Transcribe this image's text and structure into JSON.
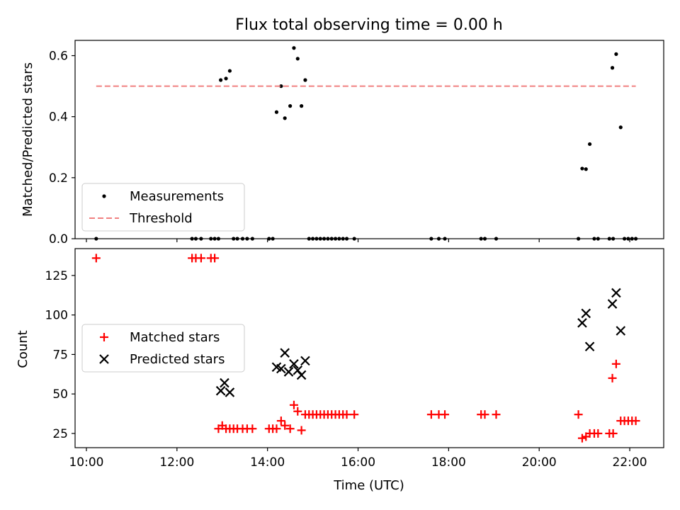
{
  "title": "Flux total observing time = 0.00 h",
  "chart_data": [
    {
      "type": "scatter",
      "panel": "top",
      "ylabel": "Matched/Predicted stars",
      "xlim": [
        "09:45",
        "22:45"
      ],
      "ylim": [
        0,
        0.65
      ],
      "yticks": [
        0.0,
        0.2,
        0.4,
        0.6
      ],
      "ytick_labels": [
        "0.0",
        "0.2",
        "0.4",
        "0.6"
      ],
      "xtick_labels_visible": false,
      "grid": false,
      "legend_position": "lower-left",
      "series": [
        {
          "name": "Measurements",
          "kind": "scatter",
          "marker": "dot",
          "color": "#000000",
          "points": [
            [
              "10:13",
              0
            ],
            [
              "12:20",
              0
            ],
            [
              "12:25",
              0
            ],
            [
              "12:32",
              0
            ],
            [
              "12:45",
              0
            ],
            [
              "12:50",
              0
            ],
            [
              "12:55",
              0
            ],
            [
              "12:58",
              0.52
            ],
            [
              "13:05",
              0.525
            ],
            [
              "13:10",
              0.55
            ],
            [
              "13:15",
              0
            ],
            [
              "13:20",
              0
            ],
            [
              "13:27",
              0
            ],
            [
              "13:33",
              0
            ],
            [
              "13:40",
              0
            ],
            [
              "14:02",
              0
            ],
            [
              "14:07",
              0
            ],
            [
              "14:12",
              0.415
            ],
            [
              "14:18",
              0.5
            ],
            [
              "14:23",
              0.395
            ],
            [
              "14:30",
              0.435
            ],
            [
              "14:35",
              0.625
            ],
            [
              "14:40",
              0.59
            ],
            [
              "14:45",
              0.435
            ],
            [
              "14:50",
              0.52
            ],
            [
              "14:55",
              0
            ],
            [
              "15:00",
              0
            ],
            [
              "15:05",
              0
            ],
            [
              "15:10",
              0
            ],
            [
              "15:15",
              0
            ],
            [
              "15:20",
              0
            ],
            [
              "15:25",
              0
            ],
            [
              "15:30",
              0
            ],
            [
              "15:35",
              0
            ],
            [
              "15:40",
              0
            ],
            [
              "15:45",
              0
            ],
            [
              "15:55",
              0
            ],
            [
              "17:37",
              0
            ],
            [
              "17:47",
              0
            ],
            [
              "17:55",
              0
            ],
            [
              "18:43",
              0
            ],
            [
              "18:48",
              0
            ],
            [
              "19:03",
              0
            ],
            [
              "20:52",
              0
            ],
            [
              "20:57",
              0.23
            ],
            [
              "21:02",
              0.228
            ],
            [
              "21:07",
              0.31
            ],
            [
              "21:13",
              0
            ],
            [
              "21:18",
              0
            ],
            [
              "21:33",
              0
            ],
            [
              "21:38",
              0
            ],
            [
              "21:37",
              0.56
            ],
            [
              "21:42",
              0.605
            ],
            [
              "21:48",
              0.365
            ],
            [
              "21:53",
              0
            ],
            [
              "21:58",
              0
            ],
            [
              "22:03",
              0
            ],
            [
              "22:08",
              0
            ]
          ]
        },
        {
          "name": "Threshold",
          "kind": "line",
          "style": "dashed",
          "color": "#f08080",
          "points": [
            [
              "10:13",
              0.5
            ],
            [
              "22:08",
              0.5
            ]
          ]
        }
      ]
    },
    {
      "type": "scatter",
      "panel": "bottom",
      "xlabel": "Time (UTC)",
      "ylabel": "Count",
      "xlim": [
        "09:45",
        "22:45"
      ],
      "ylim": [
        16,
        142
      ],
      "yticks": [
        25,
        50,
        75,
        100,
        125
      ],
      "xticks": [
        "10:00",
        "12:00",
        "14:00",
        "16:00",
        "18:00",
        "20:00",
        "22:00"
      ],
      "grid": false,
      "legend_position": "center-left",
      "series": [
        {
          "name": "Matched stars",
          "kind": "scatter",
          "marker": "plus",
          "color": "#ff0000",
          "points": [
            [
              "10:13",
              136
            ],
            [
              "12:20",
              136
            ],
            [
              "12:25",
              136
            ],
            [
              "12:32",
              136
            ],
            [
              "12:45",
              136
            ],
            [
              "12:50",
              136
            ],
            [
              "12:55",
              28
            ],
            [
              "13:00",
              30
            ],
            [
              "13:05",
              28
            ],
            [
              "13:10",
              28
            ],
            [
              "13:15",
              28
            ],
            [
              "13:20",
              28
            ],
            [
              "13:27",
              28
            ],
            [
              "13:33",
              28
            ],
            [
              "13:40",
              28
            ],
            [
              "14:02",
              28
            ],
            [
              "14:07",
              28
            ],
            [
              "14:12",
              28
            ],
            [
              "14:18",
              33
            ],
            [
              "14:23",
              30
            ],
            [
              "14:30",
              28
            ],
            [
              "14:35",
              43
            ],
            [
              "14:40",
              39
            ],
            [
              "14:45",
              27
            ],
            [
              "14:50",
              37
            ],
            [
              "14:55",
              37
            ],
            [
              "15:00",
              37
            ],
            [
              "15:05",
              37
            ],
            [
              "15:10",
              37
            ],
            [
              "15:15",
              37
            ],
            [
              "15:20",
              37
            ],
            [
              "15:25",
              37
            ],
            [
              "15:30",
              37
            ],
            [
              "15:35",
              37
            ],
            [
              "15:40",
              37
            ],
            [
              "15:45",
              37
            ],
            [
              "15:55",
              37
            ],
            [
              "17:37",
              37
            ],
            [
              "17:47",
              37
            ],
            [
              "17:55",
              37
            ],
            [
              "18:43",
              37
            ],
            [
              "18:48",
              37
            ],
            [
              "19:03",
              37
            ],
            [
              "20:52",
              37
            ],
            [
              "20:57",
              22
            ],
            [
              "21:02",
              23
            ],
            [
              "21:07",
              25
            ],
            [
              "21:13",
              25
            ],
            [
              "21:18",
              25
            ],
            [
              "21:33",
              25
            ],
            [
              "21:38",
              25
            ],
            [
              "21:37",
              60
            ],
            [
              "21:42",
              69
            ],
            [
              "21:48",
              33
            ],
            [
              "21:53",
              33
            ],
            [
              "21:58",
              33
            ],
            [
              "22:03",
              33
            ],
            [
              "22:08",
              33
            ]
          ]
        },
        {
          "name": "Predicted stars",
          "kind": "scatter",
          "marker": "x",
          "color": "#000000",
          "points": [
            [
              "12:58",
              52
            ],
            [
              "13:03",
              57
            ],
            [
              "13:10",
              51
            ],
            [
              "14:12",
              67
            ],
            [
              "14:18",
              66
            ],
            [
              "14:23",
              76
            ],
            [
              "14:28",
              64
            ],
            [
              "14:35",
              69
            ],
            [
              "14:40",
              65
            ],
            [
              "14:45",
              62
            ],
            [
              "14:50",
              71
            ],
            [
              "20:57",
              95
            ],
            [
              "21:02",
              101
            ],
            [
              "21:07",
              80
            ],
            [
              "21:37",
              107
            ],
            [
              "21:42",
              114
            ],
            [
              "21:48",
              90
            ]
          ]
        }
      ]
    }
  ]
}
